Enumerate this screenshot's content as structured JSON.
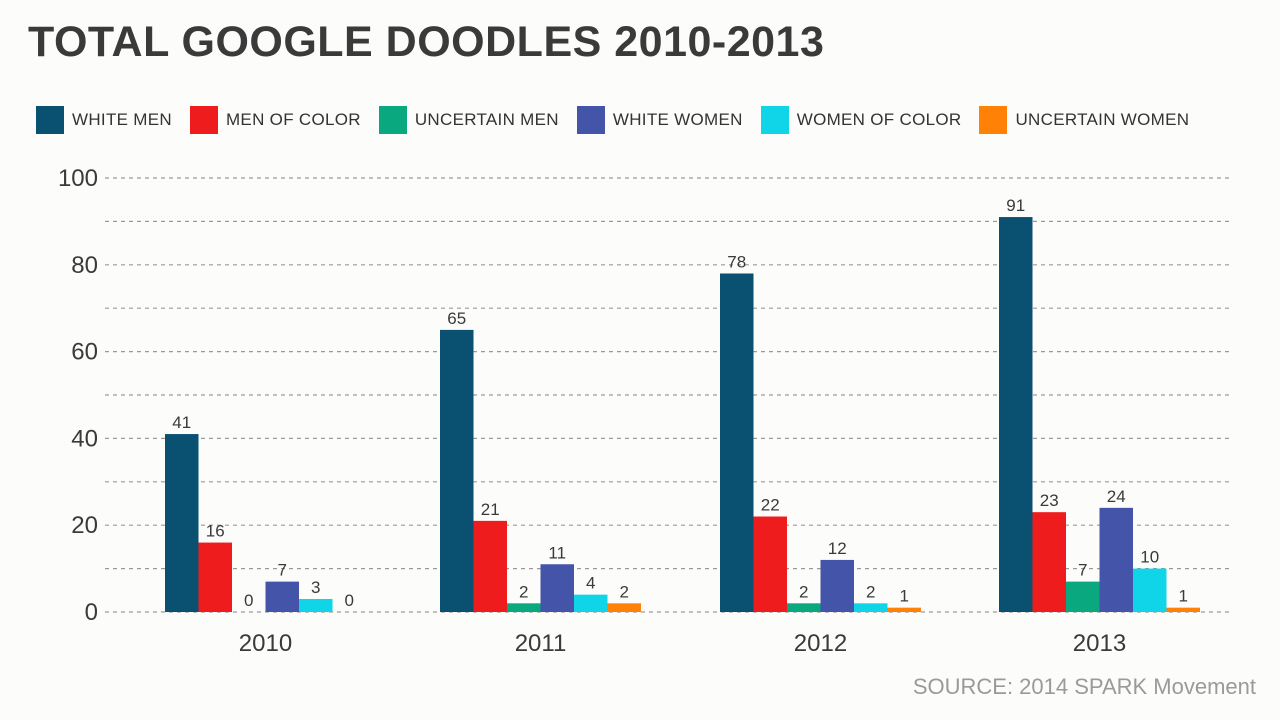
{
  "title": "TOTAL GOOGLE DOODLES 2010-2013",
  "source": "SOURCE: 2014 SPARK Movement",
  "chart_data": {
    "type": "bar",
    "categories": [
      "2010",
      "2011",
      "2012",
      "2013"
    ],
    "series": [
      {
        "name": "WHITE MEN",
        "color": "#0a5071",
        "values": [
          41,
          65,
          78,
          91
        ],
        "labels": [
          "41",
          "65",
          "78",
          "91"
        ]
      },
      {
        "name": "MEN OF COLOR",
        "color": "#ee1c1c",
        "values": [
          16,
          21,
          22,
          23
        ],
        "labels": [
          "16",
          "21",
          "22",
          "23"
        ]
      },
      {
        "name": "UNCERTAIN MEN",
        "color": "#0aa87e",
        "values": [
          0,
          2,
          2,
          7
        ],
        "labels": [
          "0",
          "2",
          "2",
          "7"
        ]
      },
      {
        "name": "WHITE WOMEN",
        "color": "#4454a8",
        "values": [
          7,
          11,
          12,
          24
        ],
        "labels": [
          "7",
          "11",
          "12",
          "24"
        ]
      },
      {
        "name": "WOMEN OF COLOR",
        "color": "#10d4e8",
        "values": [
          3,
          4,
          2,
          10
        ],
        "labels": [
          "3",
          "4",
          "2",
          "10"
        ]
      },
      {
        "name": "UNCERTAIN WOMEN",
        "color": "#ff8206",
        "values": [
          0,
          2,
          1,
          1
        ],
        "labels": [
          "0",
          "2",
          "1",
          "1"
        ]
      }
    ],
    "ylim": [
      0,
      100
    ],
    "yticks": [
      "0",
      "20",
      "40",
      "60",
      "80",
      "100"
    ],
    "grid": true,
    "legend": "top"
  }
}
